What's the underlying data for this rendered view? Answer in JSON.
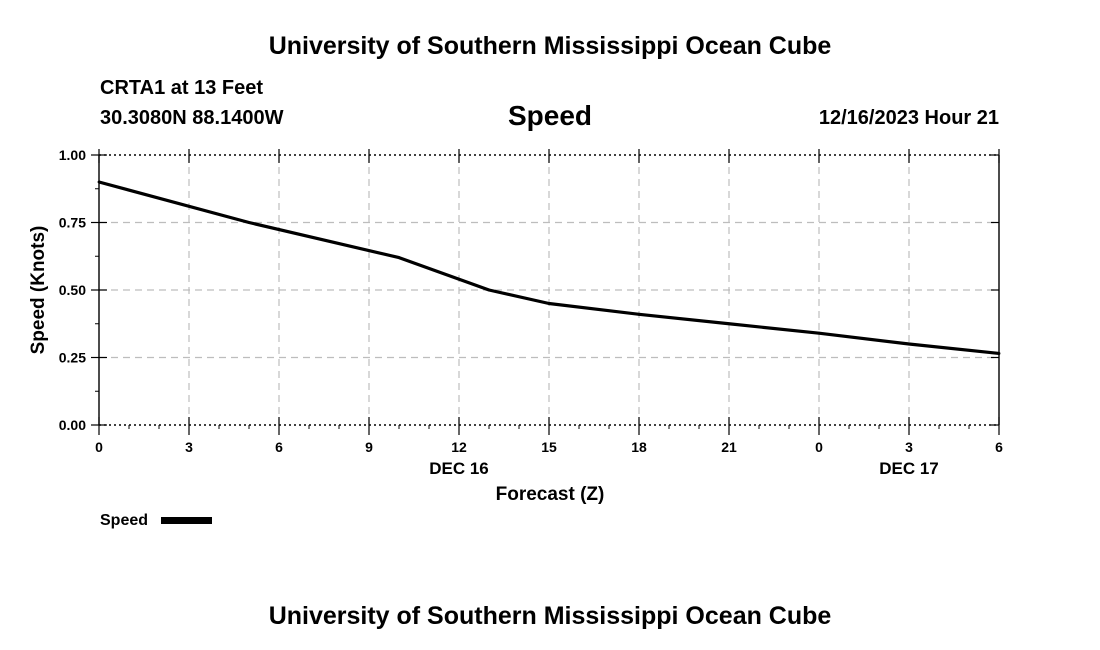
{
  "page": {
    "title_top": "University of Southern Mississippi Ocean Cube",
    "title_bottom": "University of Southern Mississippi Ocean Cube",
    "station": "CRTA1 at 13 Feet",
    "location": "30.3080N  88.1400W",
    "valid_time": "12/16/2023 Hour 21"
  },
  "chart_data": {
    "type": "line",
    "title": "Speed",
    "xlabel": "Forecast (Z)",
    "ylabel": "Speed (Knots)",
    "ylim": [
      0,
      1
    ],
    "xlim": [
      0,
      30
    ],
    "grid": true,
    "legend_position": "bottom-left",
    "x_tick_labels": [
      "0",
      "3",
      "6",
      "9",
      "12",
      "15",
      "18",
      "21",
      "0",
      "3",
      "6"
    ],
    "y_tick_labels": [
      "0.00",
      "0.25",
      "0.50",
      "0.75",
      "1.00"
    ],
    "date_labels": [
      "DEC 16",
      "DEC 17"
    ],
    "series": [
      {
        "name": "Speed",
        "color": "#000000",
        "x": [
          0,
          5,
          10,
          13,
          15,
          18,
          21,
          24,
          27,
          30
        ],
        "values": [
          0.9,
          0.75,
          0.62,
          0.5,
          0.45,
          0.41,
          0.375,
          0.34,
          0.3,
          0.265
        ]
      }
    ]
  }
}
